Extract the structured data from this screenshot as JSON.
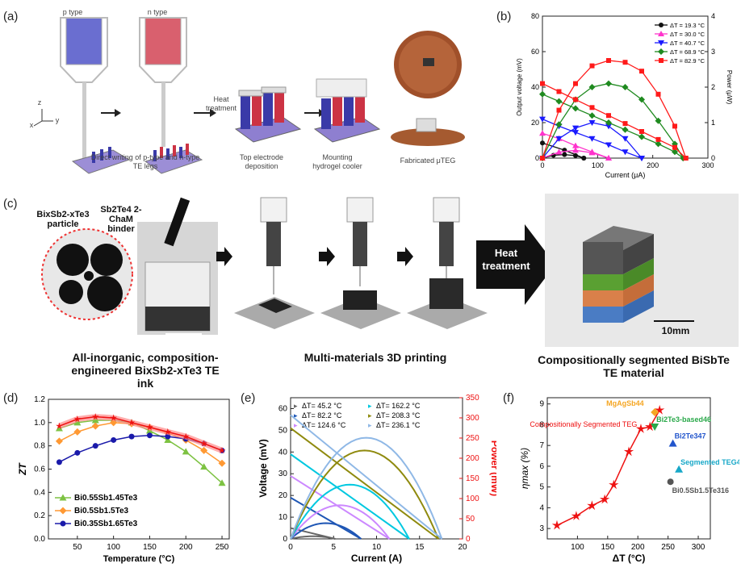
{
  "panel_labels": {
    "a": "(a)",
    "b": "(b)",
    "c": "(c)",
    "d": "(d)",
    "e": "(e)",
    "f": "(f)"
  },
  "panel_a": {
    "p_type": "p type",
    "n_type": "n type",
    "heat_treatment": "Heat treatment",
    "direct_writing": "Direct writing of p-type and n-type TE legs",
    "top_electrode": "Top electrode deposition",
    "mounting": "Mounting hydrogel cooler",
    "fabricated": "Fabricated μTEG",
    "axes": {
      "z": "z",
      "x": "x",
      "y": "y"
    }
  },
  "panel_c": {
    "particle_label": "BixSb2-xTe3 particle",
    "binder_label": "Sb2Te4 2- ChaM binder",
    "scale1": "10mm",
    "scale2": "10mm",
    "heat_treatment": "Heat treatment",
    "caption1": "All-inorganic, composition-engineered BixSb2-xTe3 TE ink",
    "caption2": "Multi-materials 3D printing",
    "caption3": "Compositionally segmented BiSbTe TE material"
  },
  "chart_data": [
    {
      "panel": "b",
      "type": "line",
      "xlabel": "Current (μA)",
      "ylabel": "Output voltage (mV)",
      "y2label": "Power (μW)",
      "xlim": [
        0,
        300
      ],
      "ylim": [
        0,
        80
      ],
      "y2lim": [
        0,
        4
      ],
      "xticks": [
        0,
        100,
        200,
        300
      ],
      "yticks": [
        0,
        20,
        40,
        60,
        80
      ],
      "y2ticks": [
        0,
        1,
        2,
        3,
        4
      ],
      "series": [
        {
          "name": "ΔT = 19.3 °C",
          "color": "#111111",
          "voltage": {
            "x": [
              0,
              40,
              75
            ],
            "y": [
              8.5,
              4.5,
              0
            ]
          },
          "power": {
            "x": [
              0,
              20,
              40,
              60,
              75
            ],
            "y": [
              0,
              0.08,
              0.1,
              0.07,
              0
            ]
          }
        },
        {
          "name": "ΔT = 30.0 °C",
          "color": "#ff33cc",
          "voltage": {
            "x": [
              0,
              30,
              60,
              90,
              120
            ],
            "y": [
              14,
              11,
              7,
              3.5,
              0
            ]
          },
          "power": {
            "x": [
              0,
              30,
              60,
              90,
              120
            ],
            "y": [
              0,
              0.17,
              0.22,
              0.15,
              0
            ]
          }
        },
        {
          "name": "ΔT = 40.7 °C",
          "color": "#1a1aff",
          "voltage": {
            "x": [
              0,
              30,
              60,
              90,
              120,
              150,
              180
            ],
            "y": [
              22,
              18,
              14.5,
              11,
              7.5,
              3.5,
              0
            ]
          },
          "power": {
            "x": [
              0,
              30,
              60,
              90,
              120,
              150,
              180
            ],
            "y": [
              0,
              0.55,
              0.85,
              1.0,
              0.9,
              0.55,
              0
            ]
          }
        },
        {
          "name": "ΔT = 68.9 °C",
          "color": "#1f8a1f",
          "voltage": {
            "x": [
              0,
              30,
              60,
              90,
              120,
              150,
              180,
              210,
              240,
              255
            ],
            "y": [
              36,
              32,
              28,
              24,
              20,
              16,
              12,
              8,
              3.5,
              0
            ]
          },
          "power": {
            "x": [
              0,
              30,
              60,
              90,
              120,
              150,
              180,
              210,
              240,
              255
            ],
            "y": [
              0,
              0.95,
              1.65,
              2.0,
              2.1,
              2.0,
              1.65,
              1.05,
              0.4,
              0
            ]
          }
        },
        {
          "name": "ΔT = 82.9 °C",
          "color": "#ff1a1a",
          "voltage": {
            "x": [
              0,
              30,
              60,
              90,
              120,
              150,
              180,
              210,
              240,
              260
            ],
            "y": [
              42,
              37.5,
              33,
              28.5,
              24,
              19.5,
              15,
              10.5,
              6,
              0
            ]
          },
          "power": {
            "x": [
              0,
              30,
              60,
              90,
              120,
              150,
              180,
              210,
              240,
              260
            ],
            "y": [
              0,
              1.35,
              2.1,
              2.6,
              2.75,
              2.7,
              2.45,
              1.8,
              0.9,
              0
            ]
          }
        }
      ]
    },
    {
      "panel": "d",
      "type": "line",
      "xlabel": "Temperature (°C)",
      "ylabel": "ZT",
      "xlim": [
        10,
        260
      ],
      "ylim": [
        0,
        1.2
      ],
      "xticks": [
        50,
        100,
        150,
        200,
        250
      ],
      "yticks": [
        0.0,
        0.2,
        0.4,
        0.6,
        0.8,
        1.0,
        1.2
      ],
      "series": [
        {
          "name": "Bi0.55Sb1.45Te3",
          "color": "#7dc242",
          "marker": "triangle",
          "x": [
            25,
            50,
            75,
            100,
            125,
            150,
            175,
            200,
            225,
            250
          ],
          "y": [
            0.95,
            1.0,
            1.02,
            1.02,
            1.0,
            0.93,
            0.85,
            0.75,
            0.62,
            0.48
          ]
        },
        {
          "name": "Bi0.5Sb1.5Te3",
          "color": "#ff9933",
          "marker": "diamond",
          "x": [
            25,
            50,
            75,
            100,
            125,
            150,
            175,
            200,
            225,
            250
          ],
          "y": [
            0.84,
            0.92,
            0.97,
            1.0,
            0.99,
            0.96,
            0.91,
            0.85,
            0.76,
            0.65
          ]
        },
        {
          "name": "Bi0.35Sb1.65Te3",
          "color": "#1a1aaa",
          "marker": "circle",
          "x": [
            25,
            50,
            75,
            100,
            125,
            150,
            175,
            200,
            225,
            250
          ],
          "y": [
            0.66,
            0.74,
            0.8,
            0.85,
            0.88,
            0.89,
            0.88,
            0.86,
            0.82,
            0.76
          ]
        },
        {
          "name": "",
          "color": "#ee1111",
          "marker": "star",
          "x": [
            25,
            50,
            75,
            100,
            125,
            150,
            175,
            200,
            225,
            250
          ],
          "y": [
            0.97,
            1.03,
            1.05,
            1.04,
            1.0,
            0.96,
            0.92,
            0.88,
            0.82,
            0.76
          ]
        }
      ]
    },
    {
      "panel": "e",
      "type": "line",
      "xlabel": "Current (A)",
      "ylabel": "Voltage (mV)",
      "y2label": "Power (mW)",
      "xlim": [
        0,
        20
      ],
      "ylim": [
        0,
        65
      ],
      "y2lim": [
        0,
        350
      ],
      "xticks": [
        0,
        5,
        10,
        15,
        20
      ],
      "yticks": [
        0,
        10,
        20,
        30,
        40,
        50,
        60
      ],
      "y2ticks": [
        0,
        50,
        100,
        150,
        200,
        250,
        300,
        350
      ],
      "series": [
        {
          "name": "ΔT= 45.2 °C",
          "color": "#666666",
          "isc": 5.2,
          "voc": 5
        },
        {
          "name": "ΔT= 82.2 °C",
          "color": "#1e56b5",
          "isc": 8.2,
          "voc": 19
        },
        {
          "name": "ΔT= 124.6 °C",
          "color": "#cc88ff",
          "isc": 11.5,
          "voc": 29
        },
        {
          "name": "ΔT= 162.2 °C",
          "color": "#00c8e0",
          "isc": 13.8,
          "voc": 39
        },
        {
          "name": "ΔT= 208.3 °C",
          "color": "#8f8a0e",
          "isc": 17.2,
          "voc": 51
        },
        {
          "name": "ΔT= 236.1 °C",
          "color": "#8fb8e6",
          "isc": 17.6,
          "voc": 57
        }
      ]
    },
    {
      "panel": "f",
      "type": "scatter",
      "xlabel": "ΔT (°C)",
      "ylabel": "ηmax (%)",
      "xlim": [
        50,
        320
      ],
      "ylim": [
        2.5,
        9.3
      ],
      "xticks": [
        100,
        150,
        200,
        250,
        300
      ],
      "yticks": [
        3,
        4,
        5,
        6,
        7,
        8,
        9
      ],
      "main_series": {
        "name": "Compositionally Segmented TEG",
        "color": "#ee1111",
        "x": [
          66,
          98,
          124,
          145,
          160,
          185,
          205,
          220,
          236
        ],
        "y": [
          3.15,
          3.6,
          4.1,
          4.4,
          5.1,
          6.7,
          7.8,
          7.9,
          8.7
        ]
      },
      "refs": [
        {
          "name": "MgAgSb44",
          "color": "#f5a623",
          "x": 228,
          "y": 8.6
        },
        {
          "name": "Bi2Te3-based46",
          "color": "#2aa84a",
          "x": 228,
          "y": 7.9
        },
        {
          "name": "Bi2Te347",
          "color": "#2255cc",
          "x": 258,
          "y": 7.1
        },
        {
          "name": "Segmented TEG45",
          "color": "#18a8c8",
          "x": 268,
          "y": 5.85
        },
        {
          "name": "Bi0.5Sb1.5Te316",
          "color": "#555555",
          "x": 254,
          "y": 5.25
        }
      ]
    }
  ]
}
